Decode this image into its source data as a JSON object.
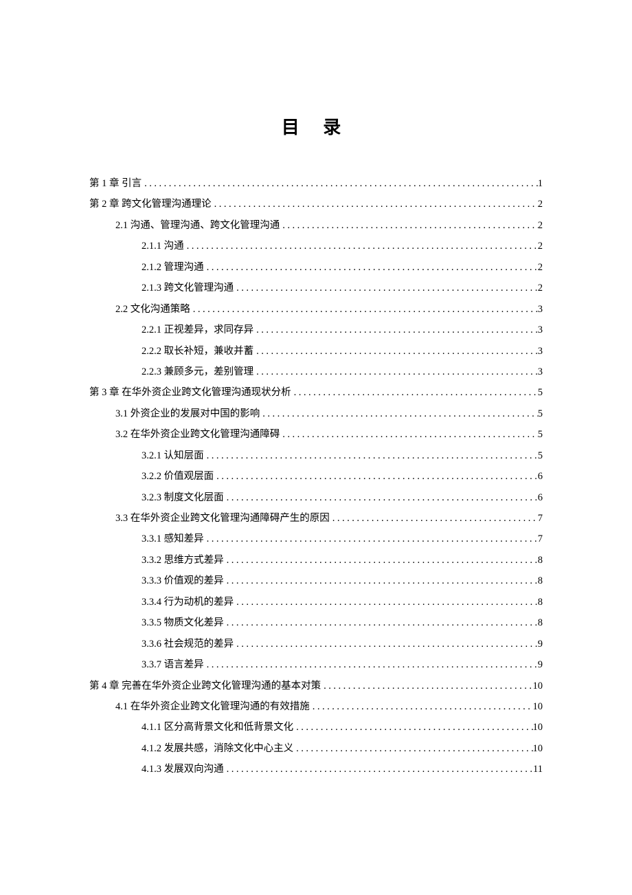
{
  "title": "目 录",
  "entries": [
    {
      "level": 0,
      "label": "第 1 章  引言",
      "page": "1"
    },
    {
      "level": 0,
      "label": "第 2 章  跨文化管理沟通理论",
      "page": "2"
    },
    {
      "level": 1,
      "label": "2.1  沟通、管理沟通、跨文化管理沟通",
      "page": "2"
    },
    {
      "level": 2,
      "label": "2.1.1 沟通",
      "page": "2"
    },
    {
      "level": 2,
      "label": "2.1.2 管理沟通",
      "page": "2"
    },
    {
      "level": 2,
      "label": "2.1.3 跨文化管理沟通",
      "page": "2"
    },
    {
      "level": 1,
      "label": "2.2  文化沟通策略",
      "page": "3"
    },
    {
      "level": 2,
      "label": "2.2.1 正视差异，求同存异",
      "page": "3"
    },
    {
      "level": 2,
      "label": "2.2.2 取长补短，兼收并蓄",
      "page": "3"
    },
    {
      "level": 2,
      "label": "2.2.3 兼顾多元，差别管理",
      "page": "3"
    },
    {
      "level": 0,
      "label": "第 3 章  在华外资企业跨文化管理沟通现状分析",
      "page": "5"
    },
    {
      "level": 1,
      "label": "3.1  外资企业的发展对中国的影响",
      "page": "5"
    },
    {
      "level": 1,
      "label": "3.2  在华外资企业跨文化管理沟通障碍",
      "page": "5"
    },
    {
      "level": 2,
      "label": "3.2.1 认知层面",
      "page": "5"
    },
    {
      "level": 2,
      "label": "3.2.2 价值观层面",
      "page": "6"
    },
    {
      "level": 2,
      "label": "3.2.3 制度文化层面",
      "page": "6"
    },
    {
      "level": 1,
      "label": "3.3  在华外资企业跨文化管理沟通障碍产生的原因",
      "page": "7"
    },
    {
      "level": 2,
      "label": "3.3.1 感知差异",
      "page": "7"
    },
    {
      "level": 2,
      "label": "3.3.2 思维方式差异",
      "page": "8"
    },
    {
      "level": 2,
      "label": "3.3.3 价值观的差异",
      "page": "8"
    },
    {
      "level": 2,
      "label": "3.3.4 行为动机的差异",
      "page": "8"
    },
    {
      "level": 2,
      "label": "3.3.5 物质文化差异",
      "page": "8"
    },
    {
      "level": 2,
      "label": "3.3.6 社会规范的差异",
      "page": "9"
    },
    {
      "level": 2,
      "label": "3.3.7 语言差异",
      "page": "9"
    },
    {
      "level": 0,
      "label": "第 4 章  完善在华外资企业跨文化管理沟通的基本对策",
      "page": "10"
    },
    {
      "level": 1,
      "label": "4.1  在华外资企业跨文化管理沟通的有效措施",
      "page": "10"
    },
    {
      "level": 2,
      "label": "4.1.1 区分高背景文化和低背景文化",
      "page": "10"
    },
    {
      "level": 2,
      "label": "4.1.2 发展共感，消除文化中心主义",
      "page": "10"
    },
    {
      "level": 2,
      "label": "4.1.3 发展双向沟通",
      "page": "11"
    }
  ]
}
